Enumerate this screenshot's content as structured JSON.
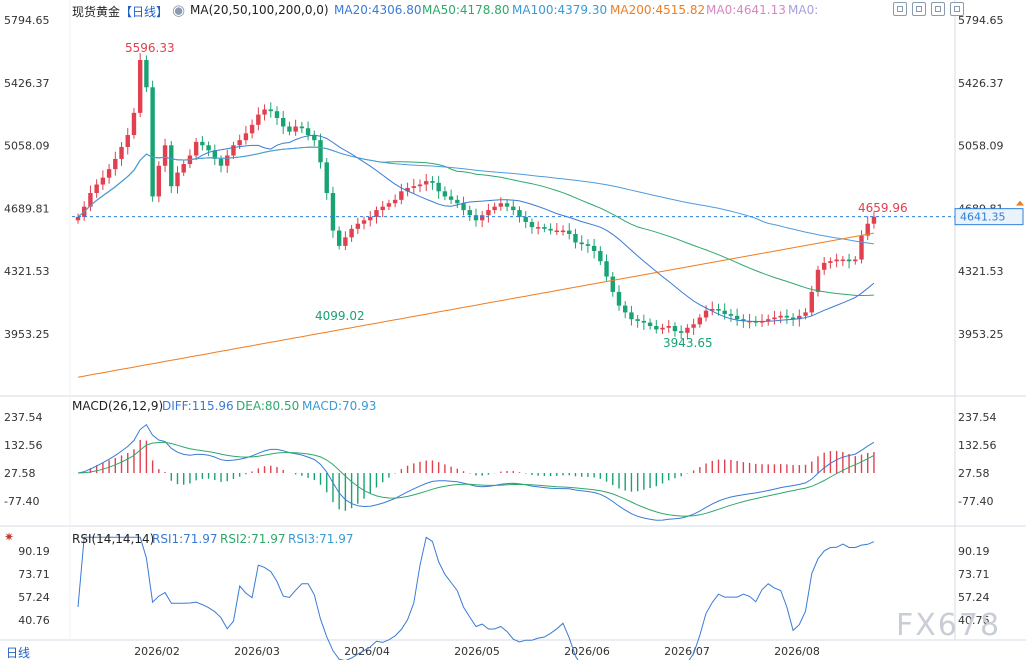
{
  "chart": {
    "title": "现货黄金",
    "period_tag": "【日线】",
    "ma_label": "MA(20,50,100,200,0,0)",
    "ma_values": [
      "MA20:4306.80",
      "MA50:4178.80",
      "MA100:4379.30",
      "MA200:4515.82",
      "MA0:4641.13",
      "MA0:"
    ],
    "macd_label": "MACD(26,12,9)",
    "macd_values": [
      "DIFF:115.96",
      "DEA:80.50",
      "MACD:70.93"
    ],
    "rsi_label": "RSI(14,14,14)",
    "rsi_values": [
      "RSI1:71.97",
      "RSI2:71.97",
      "RSI3:71.97"
    ],
    "bottom_period": "日线",
    "watermark": "FX678",
    "colors": {
      "up": "#e0404f",
      "down": "#1aa372",
      "ma20": "#3a7bd5",
      "ma50": "#2fa86b",
      "ma100": "#3a7bd5",
      "ma200": "#ef7d22",
      "diff": "#3a7bd5",
      "dea": "#2fa86b",
      "rsi": "#3a7bd5",
      "label_bg": "#2f7fd9"
    },
    "icons": [
      "eye-icon",
      "settings-icon",
      "zoom-icon",
      "fullscreen-icon",
      "expand-icon",
      "close-icon"
    ]
  },
  "chart_data": {
    "type": "candlestick",
    "price_ticks": [
      "5794.65",
      "5426.37",
      "5058.09",
      "4689.81",
      "4321.53",
      "3953.25"
    ],
    "macd_ticks": [
      "237.54",
      "132.56",
      "27.58",
      "-77.40"
    ],
    "rsi_ticks": [
      "90.19",
      "73.71",
      "57.24",
      "40.76"
    ],
    "x_labels": [
      "2026/02",
      "2026/03",
      "2026/04",
      "2026/05",
      "2026/06",
      "2026/07",
      "2026/08"
    ],
    "annotations": {
      "high": "5596.33",
      "low1": "4099.02",
      "low2": "3943.65",
      "last_high": "4659.96"
    },
    "current_price": "4641.35",
    "closes": [
      4640,
      4700,
      4780,
      4830,
      4870,
      4920,
      4980,
      5050,
      5120,
      5250,
      5560,
      5400,
      4760,
      4940,
      5060,
      4820,
      4900,
      4950,
      5000,
      5080,
      5060,
      5030,
      4980,
      4940,
      5000,
      5060,
      5090,
      5130,
      5180,
      5240,
      5270,
      5260,
      5220,
      5170,
      5140,
      5170,
      5160,
      5120,
      5090,
      4960,
      4780,
      4560,
      4470,
      4520,
      4570,
      4600,
      4620,
      4640,
      4680,
      4700,
      4720,
      4740,
      4790,
      4810,
      4820,
      4830,
      4850,
      4840,
      4790,
      4760,
      4740,
      4720,
      4680,
      4650,
      4620,
      4650,
      4680,
      4700,
      4720,
      4700,
      4680,
      4640,
      4610,
      4580,
      4580,
      4570,
      4560,
      4560,
      4560,
      4540,
      4490,
      4480,
      4470,
      4440,
      4380,
      4290,
      4200,
      4120,
      4080,
      4040,
      4030,
      4020,
      4000,
      3980,
      3990,
      4000,
      3970,
      3960,
      3990,
      4010,
      4050,
      4090,
      4100,
      4090,
      4070,
      4060,
      4040,
      4030,
      4030,
      4020,
      4030,
      4040,
      4050,
      4060,
      4050,
      4040,
      4060,
      4080,
      4200,
      4330,
      4370,
      4380,
      4390,
      4390,
      4380,
      4390,
      4530,
      4600,
      4641
    ]
  }
}
